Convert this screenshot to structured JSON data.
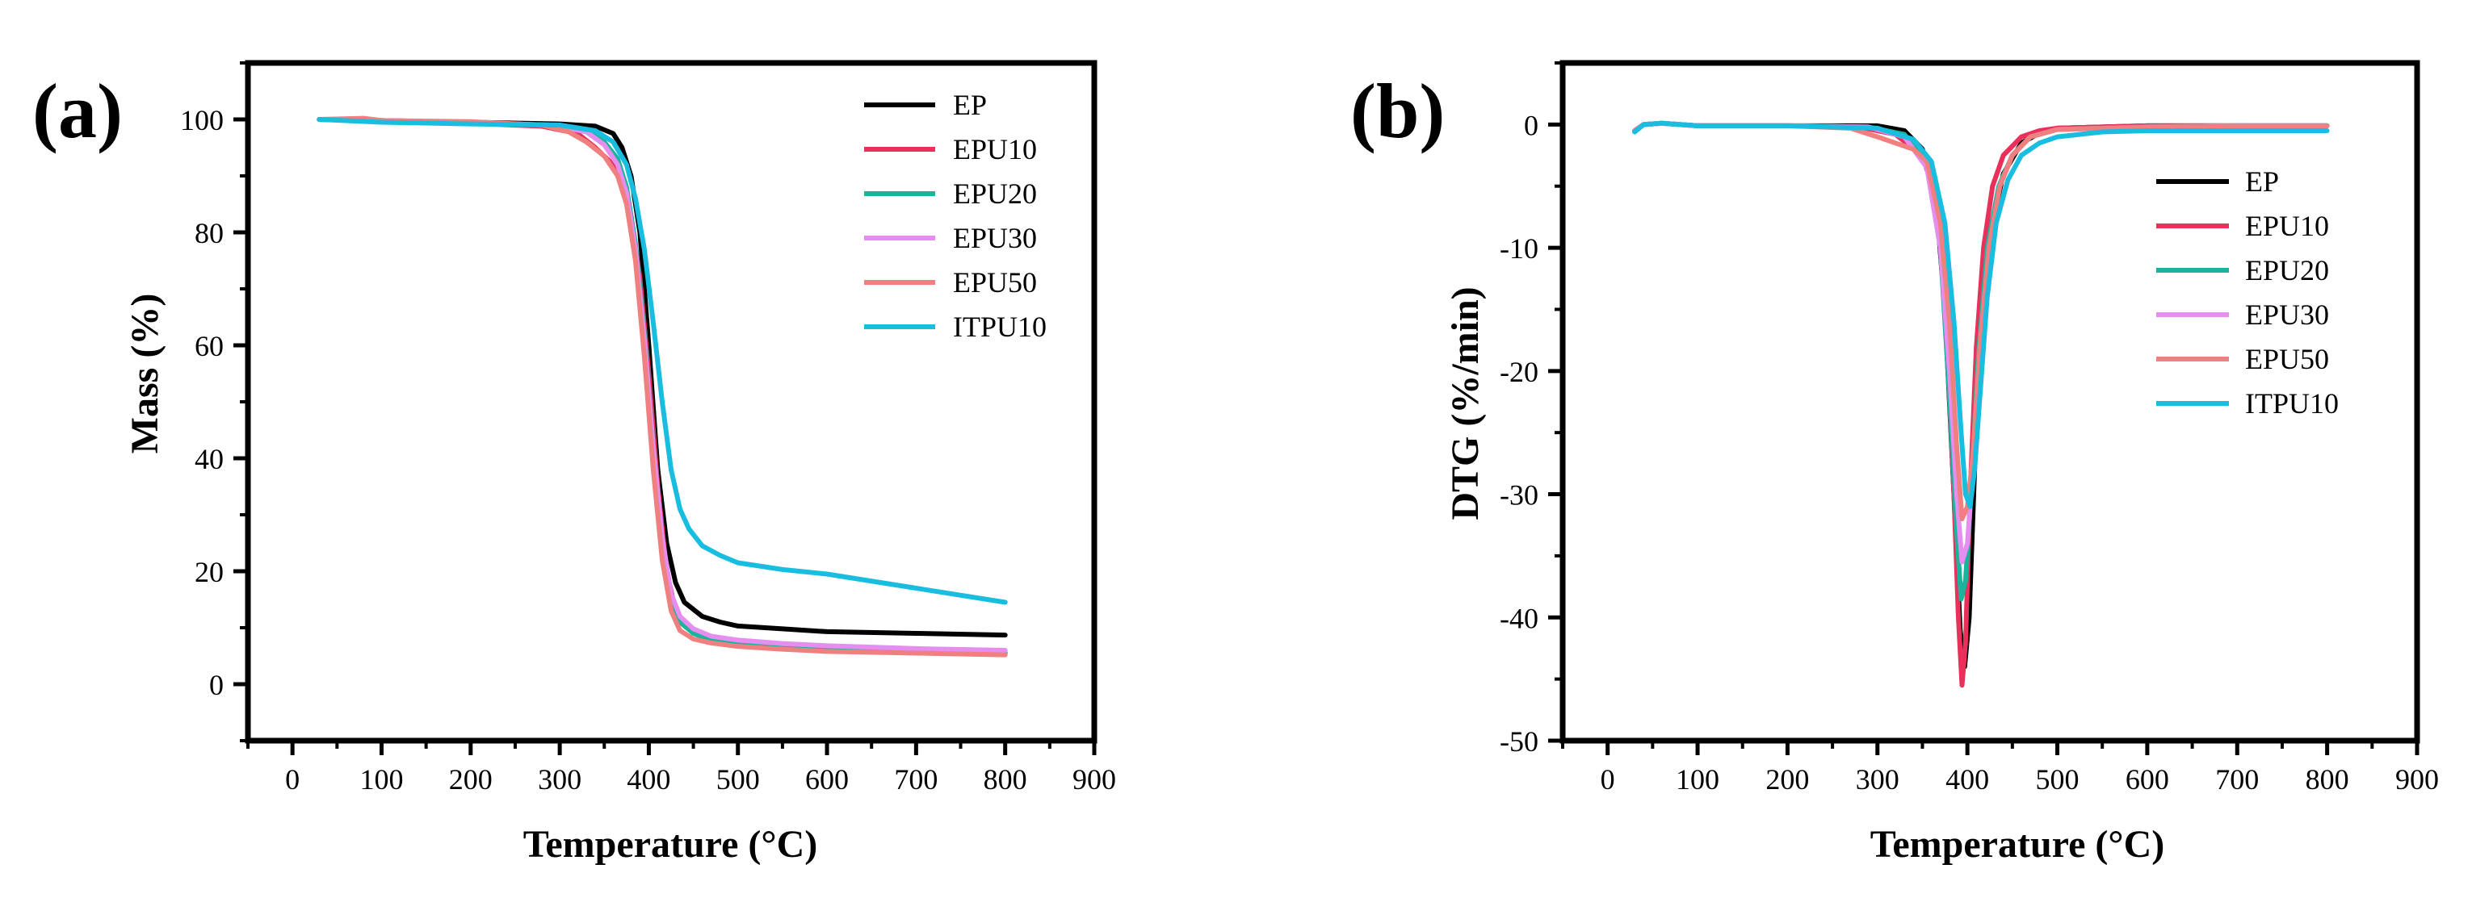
{
  "chart_data": [
    {
      "panel": "(a)",
      "type": "line",
      "xlabel": "Temperature (°C)",
      "ylabel": "Mass (%)",
      "xlim": [
        -50,
        900
      ],
      "ylim": [
        -10,
        110
      ],
      "xticks": [
        0,
        100,
        200,
        300,
        400,
        500,
        600,
        700,
        800,
        900
      ],
      "yticks": [
        0,
        20,
        40,
        60,
        80,
        100
      ],
      "legend_position": "top-right",
      "series": [
        {
          "name": "EP",
          "color": "#000000",
          "x": [
            30,
            100,
            200,
            300,
            340,
            360,
            370,
            380,
            390,
            400,
            410,
            420,
            430,
            440,
            460,
            480,
            500,
            550,
            600,
            700,
            800
          ],
          "y": [
            100,
            99.8,
            99.5,
            99.2,
            98.8,
            97.5,
            95,
            90,
            80,
            60,
            38,
            25,
            18,
            14.5,
            12,
            11,
            10.3,
            9.8,
            9.3,
            9,
            8.7
          ]
        },
        {
          "name": "EPU10",
          "color": "#e8305a",
          "x": [
            30,
            100,
            200,
            280,
            320,
            340,
            360,
            370,
            380,
            390,
            400,
            410,
            420,
            430,
            440,
            460,
            480,
            500,
            550,
            600,
            700,
            800
          ],
          "y": [
            100,
            99.7,
            99.3,
            98.8,
            97.5,
            95,
            92,
            89,
            83,
            72,
            55,
            35,
            20,
            13,
            10.5,
            8.5,
            7.8,
            7.3,
            6.8,
            6.3,
            5.8,
            5.4
          ]
        },
        {
          "name": "EPU20",
          "color": "#1ab39b",
          "x": [
            30,
            100,
            200,
            290,
            330,
            350,
            365,
            375,
            385,
            395,
            405,
            415,
            425,
            435,
            450,
            470,
            500,
            550,
            600,
            700,
            800
          ],
          "y": [
            100,
            99.8,
            99.4,
            99,
            98,
            96,
            93,
            88,
            78,
            62,
            42,
            25,
            15,
            11,
            9,
            7.8,
            7.2,
            6.7,
            6.3,
            5.9,
            5.6
          ]
        },
        {
          "name": "EPU30",
          "color": "#e58ef0",
          "x": [
            30,
            100,
            200,
            290,
            330,
            350,
            365,
            375,
            385,
            395,
            405,
            415,
            425,
            435,
            450,
            470,
            500,
            550,
            600,
            700,
            800
          ],
          "y": [
            100,
            99.8,
            99.4,
            99,
            97.8,
            95.5,
            92,
            87,
            77,
            61,
            42,
            26,
            16,
            12,
            9.8,
            8.5,
            7.8,
            7.2,
            6.8,
            6.3,
            6.0
          ]
        },
        {
          "name": "EPU50",
          "color": "#f08080",
          "x": [
            30,
            80,
            100,
            200,
            280,
            310,
            330,
            350,
            365,
            375,
            385,
            395,
            405,
            415,
            425,
            435,
            450,
            470,
            500,
            550,
            600,
            700,
            800
          ],
          "y": [
            100,
            100.2,
            99.8,
            99.6,
            99,
            97.8,
            96,
            93.5,
            90,
            85,
            75,
            58,
            38,
            22,
            13,
            9.5,
            8,
            7.3,
            6.7,
            6.2,
            5.8,
            5.5,
            5.2
          ]
        },
        {
          "name": "ITPU10",
          "color": "#18bde0",
          "x": [
            30,
            100,
            200,
            300,
            340,
            360,
            375,
            385,
            395,
            405,
            415,
            425,
            435,
            445,
            460,
            480,
            500,
            550,
            600,
            700,
            800
          ],
          "y": [
            100,
            99.5,
            99.2,
            99,
            98,
            96,
            92,
            86,
            77,
            64,
            50,
            38,
            31,
            27.5,
            24.5,
            22.8,
            21.5,
            20.3,
            19.5,
            17,
            14.5
          ]
        }
      ]
    },
    {
      "panel": "(b)",
      "type": "line",
      "xlabel": "Temperature (°C)",
      "ylabel": "DTG (%/min)",
      "xlim": [
        -50,
        900
      ],
      "ylim": [
        -50,
        5
      ],
      "xticks": [
        0,
        100,
        200,
        300,
        400,
        500,
        600,
        700,
        800,
        900
      ],
      "yticks": [
        0,
        -10,
        -20,
        -30,
        -40,
        -50
      ],
      "legend_position": "center-right",
      "series": [
        {
          "name": "EP",
          "color": "#000000",
          "x": [
            30,
            40,
            60,
            100,
            200,
            300,
            330,
            350,
            365,
            375,
            385,
            392,
            397,
            402,
            408,
            415,
            425,
            440,
            460,
            480,
            500,
            600,
            700,
            800
          ],
          "y": [
            -0.5,
            0,
            0.1,
            -0.1,
            -0.1,
            -0.1,
            -0.5,
            -2,
            -6,
            -15,
            -30,
            -41,
            -44,
            -40,
            -28,
            -16,
            -9,
            -4,
            -1.5,
            -0.7,
            -0.3,
            -0.1,
            -0.1,
            -0.1
          ]
        },
        {
          "name": "EPU10",
          "color": "#e8305a",
          "x": [
            30,
            40,
            60,
            100,
            200,
            280,
            320,
            350,
            365,
            375,
            385,
            390,
            394,
            398,
            403,
            410,
            418,
            428,
            440,
            460,
            480,
            500,
            600,
            700,
            800
          ],
          "y": [
            -0.5,
            0,
            0.1,
            -0.1,
            -0.1,
            -0.2,
            -0.8,
            -2.5,
            -6,
            -14,
            -30,
            -40,
            -45.5,
            -42,
            -30,
            -18,
            -10,
            -5,
            -2.5,
            -1,
            -0.5,
            -0.3,
            -0.1,
            -0.1,
            -0.1
          ]
        },
        {
          "name": "EPU20",
          "color": "#1ab39b",
          "x": [
            30,
            40,
            60,
            100,
            200,
            290,
            330,
            355,
            370,
            380,
            388,
            393,
            398,
            404,
            412,
            422,
            435,
            450,
            470,
            500,
            600,
            700,
            800
          ],
          "y": [
            -0.5,
            0,
            0.1,
            -0.1,
            -0.1,
            -0.2,
            -0.8,
            -3,
            -10,
            -22,
            -33,
            -38.5,
            -37,
            -30,
            -19,
            -10,
            -5,
            -2.5,
            -1,
            -0.4,
            -0.2,
            -0.1,
            -0.1
          ]
        },
        {
          "name": "EPU30",
          "color": "#e58ef0",
          "x": [
            30,
            40,
            60,
            100,
            200,
            290,
            330,
            355,
            370,
            380,
            388,
            394,
            400,
            406,
            414,
            424,
            436,
            450,
            470,
            500,
            600,
            700,
            800
          ],
          "y": [
            -0.5,
            0,
            0.1,
            -0.1,
            -0.1,
            -0.2,
            -1,
            -3.5,
            -10,
            -20,
            -30,
            -35.5,
            -34,
            -28,
            -18,
            -10,
            -5,
            -2.5,
            -1,
            -0.4,
            -0.2,
            -0.1,
            -0.1
          ]
        },
        {
          "name": "EPU50",
          "color": "#f08080",
          "x": [
            30,
            40,
            60,
            100,
            200,
            270,
            300,
            320,
            340,
            355,
            370,
            380,
            388,
            394,
            400,
            406,
            414,
            424,
            436,
            450,
            470,
            500,
            600,
            700,
            800
          ],
          "y": [
            -0.5,
            0,
            0.1,
            -0.1,
            -0.1,
            -0.3,
            -1,
            -1.5,
            -2,
            -3,
            -8,
            -16,
            -26,
            -32,
            -31,
            -27,
            -18,
            -10,
            -5,
            -2.5,
            -1,
            -0.4,
            -0.2,
            -0.1,
            -0.1
          ]
        },
        {
          "name": "ITPU10",
          "color": "#18bde0",
          "x": [
            30,
            40,
            60,
            100,
            200,
            300,
            340,
            360,
            375,
            385,
            393,
            398,
            403,
            408,
            414,
            422,
            432,
            445,
            460,
            480,
            500,
            550,
            600,
            700,
            800
          ],
          "y": [
            -0.6,
            0,
            0.1,
            -0.1,
            -0.1,
            -0.3,
            -1.2,
            -3,
            -8,
            -16,
            -25,
            -30,
            -31,
            -28,
            -22,
            -14,
            -8,
            -4.5,
            -2.5,
            -1.5,
            -1,
            -0.6,
            -0.5,
            -0.5,
            -0.5
          ]
        }
      ]
    }
  ]
}
